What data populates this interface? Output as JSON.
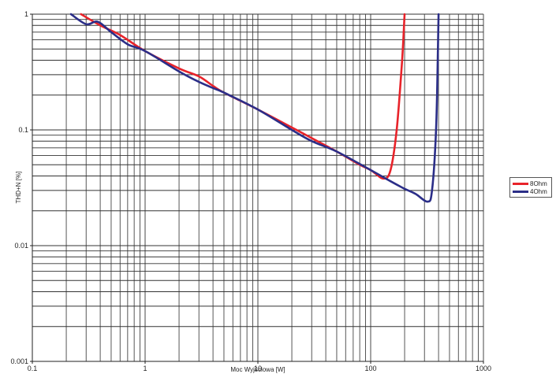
{
  "chart_data": {
    "type": "line",
    "title": "",
    "xlabel": "Moc Wyjściowa [W]",
    "ylabel": "THD+N [%]",
    "xscale": "log",
    "yscale": "log",
    "xlim": [
      0.1,
      1000
    ],
    "ylim": [
      0.001,
      1
    ],
    "x_ticks": [
      "0.1",
      "1",
      "10",
      "100",
      "1000"
    ],
    "y_ticks": [
      "0.001",
      "0.01",
      "0.1",
      "1"
    ],
    "grid": true,
    "legend_position": "right",
    "series": [
      {
        "name": "8Ohm",
        "color": "#e8232a",
        "points": [
          [
            0.27,
            1.0
          ],
          [
            0.4,
            0.8
          ],
          [
            0.6,
            0.66
          ],
          [
            1,
            0.48
          ],
          [
            2,
            0.34
          ],
          [
            3,
            0.29
          ],
          [
            4,
            0.24
          ],
          [
            5,
            0.21
          ],
          [
            10,
            0.15
          ],
          [
            20,
            0.105
          ],
          [
            30,
            0.085
          ],
          [
            50,
            0.065
          ],
          [
            80,
            0.05
          ],
          [
            100,
            0.045
          ],
          [
            130,
            0.038
          ],
          [
            150,
            0.045
          ],
          [
            170,
            0.1
          ],
          [
            190,
            0.4
          ],
          [
            200,
            1.0
          ]
        ]
      },
      {
        "name": "4Ohm",
        "color": "#2b2e88",
        "points": [
          [
            0.22,
            1.0
          ],
          [
            0.3,
            0.82
          ],
          [
            0.38,
            0.86
          ],
          [
            0.5,
            0.7
          ],
          [
            0.7,
            0.55
          ],
          [
            1,
            0.48
          ],
          [
            2,
            0.32
          ],
          [
            3,
            0.26
          ],
          [
            4,
            0.23
          ],
          [
            5,
            0.21
          ],
          [
            10,
            0.15
          ],
          [
            20,
            0.1
          ],
          [
            30,
            0.08
          ],
          [
            50,
            0.065
          ],
          [
            100,
            0.045
          ],
          [
            150,
            0.036
          ],
          [
            200,
            0.031
          ],
          [
            250,
            0.028
          ],
          [
            320,
            0.024
          ],
          [
            350,
            0.03
          ],
          [
            380,
            0.1
          ],
          [
            395,
            0.5
          ],
          [
            400,
            1.0
          ]
        ]
      }
    ]
  },
  "legend": {
    "items": [
      {
        "label": "8Ohm",
        "color": "#e8232a"
      },
      {
        "label": "4Ohm",
        "color": "#2b2e88"
      }
    ]
  }
}
